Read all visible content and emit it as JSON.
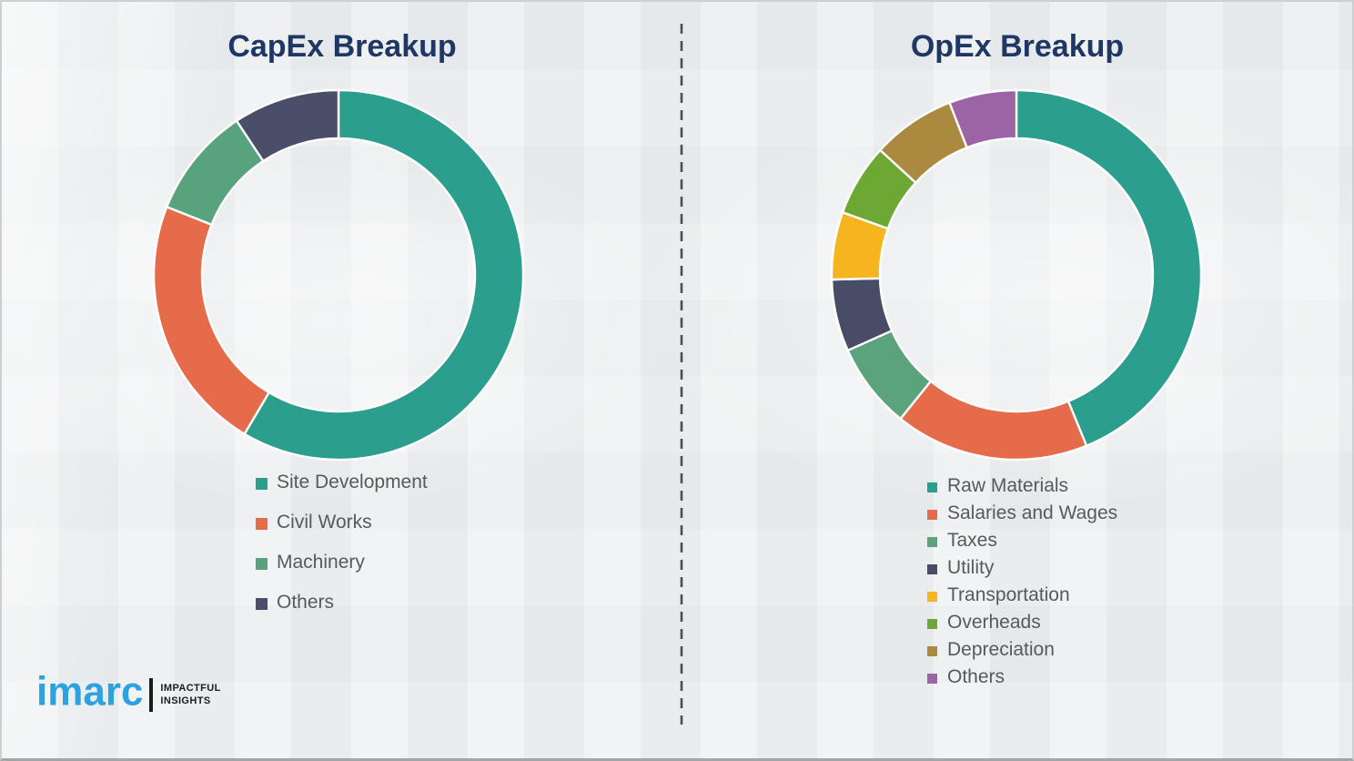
{
  "page": {
    "background_color": "#eef0f1",
    "title_color": "#1f3764",
    "legend_text_color": "#595959",
    "divider_style": "vertical-dashed"
  },
  "chart_data": [
    {
      "type": "pie",
      "subtype": "donut",
      "title": "CapEx Breakup",
      "categories": [
        "Site Development",
        "Civil Works",
        "Machinery",
        "Others"
      ],
      "values": [
        58.5,
        22.5,
        9.7,
        9.3
      ],
      "values_unit": "percent-estimated-from-arc-angles",
      "colors": [
        "#2b9e8e",
        "#e66b4b",
        "#58a27d",
        "#4a4e68"
      ],
      "start_angle_deg": 0,
      "direction": "clockwise",
      "legend_position": "below-chart-left"
    },
    {
      "type": "pie",
      "subtype": "donut",
      "title": "OpEx Breakup",
      "categories": [
        "Raw Materials",
        "Salaries and Wages",
        "Taxes",
        "Utility",
        "Transportation",
        "Overheads",
        "Depreciation",
        "Others"
      ],
      "values": [
        43.8,
        17.0,
        7.5,
        6.3,
        5.9,
        6.3,
        7.3,
        5.9
      ],
      "values_unit": "percent-estimated-from-arc-angles",
      "colors": [
        "#2b9e8e",
        "#e66b4b",
        "#5ba37d",
        "#484c66",
        "#f6b41f",
        "#6ea834",
        "#aa8a3e",
        "#9c63a5"
      ],
      "start_angle_deg": 0,
      "direction": "clockwise",
      "legend_position": "below-chart-left"
    }
  ],
  "logo": {
    "brand": "imarc",
    "tagline_line1": "IMPACTFUL",
    "tagline_line2": "INSIGHTS",
    "brand_color": "#2ea2df"
  }
}
